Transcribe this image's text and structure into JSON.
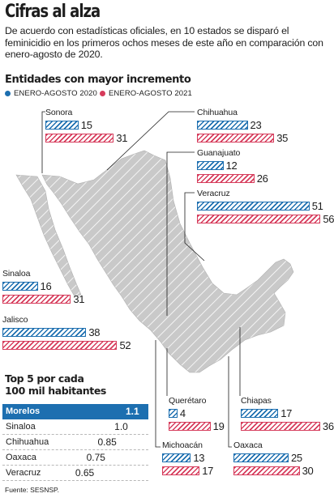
{
  "title": "Cifras al alza",
  "intro": "De acuerdo con estadísticas oficiales, en 10 estados se disparó el feminicidio en los primeros ochos meses de este año en comparación con enero-agosto de 2020.",
  "section_heading": "Entidades con mayor incremento",
  "legend": [
    {
      "label": "ENERO-AGOSTO 2020",
      "color": "#1d6fb0"
    },
    {
      "label": "ENERO-AGOSTO 2021",
      "color": "#d63b5b"
    }
  ],
  "colors": {
    "y2020": "#1d6fb0",
    "y2021": "#d63b5b",
    "map_fill": "#c9c9c9",
    "leader": "#1d1d1d"
  },
  "chart_data": {
    "type": "bar",
    "series": [
      {
        "name": "ENERO-AGOSTO 2020",
        "values": [
          15,
          23,
          12,
          51,
          16,
          38,
          4,
          17,
          13,
          25
        ]
      },
      {
        "name": "ENERO-AGOSTO 2021",
        "values": [
          31,
          35,
          26,
          56,
          31,
          52,
          19,
          36,
          17,
          30
        ]
      }
    ],
    "categories": [
      "Sonora",
      "Chihuahua",
      "Guanajuato",
      "Veracruz",
      "Sinaloa",
      "Jalisco",
      "Querétaro",
      "Chiapas",
      "Michoacán",
      "Oaxaca"
    ],
    "states": [
      {
        "name": "Sonora",
        "v2020": "15",
        "v2021": "31"
      },
      {
        "name": "Chihuahua",
        "v2020": "23",
        "v2021": "35"
      },
      {
        "name": "Guanajuato",
        "v2020": "12",
        "v2021": "26"
      },
      {
        "name": "Veracruz",
        "v2020": "51",
        "v2021": "56"
      },
      {
        "name": "Sinaloa",
        "v2020": "16",
        "v2021": "31"
      },
      {
        "name": "Jalisco",
        "v2020": "38",
        "v2021": "52"
      },
      {
        "name": "Querétaro",
        "v2020": "4",
        "v2021": "19"
      },
      {
        "name": "Chiapas",
        "v2020": "17",
        "v2021": "36"
      },
      {
        "name": "Michoacán",
        "v2020": "13",
        "v2021": "17"
      },
      {
        "name": "Oaxaca",
        "v2020": "25",
        "v2021": "30"
      }
    ]
  },
  "top5": {
    "heading_line1": "Top 5 por cada",
    "heading_line2": "100 mil habitantes",
    "rows": [
      {
        "name": "Morelos",
        "value": "1.1",
        "value_num": 1.1
      },
      {
        "name": "Sinaloa",
        "value": "1.0",
        "value_num": 1.0
      },
      {
        "name": "Chihuahua",
        "value": "0.85",
        "value_num": 0.85
      },
      {
        "name": "Oaxaca",
        "value": "0.75",
        "value_num": 0.75
      },
      {
        "name": "Veracruz",
        "value": "0.65",
        "value_num": 0.65
      }
    ]
  },
  "source": "Fuente: SESNSP."
}
